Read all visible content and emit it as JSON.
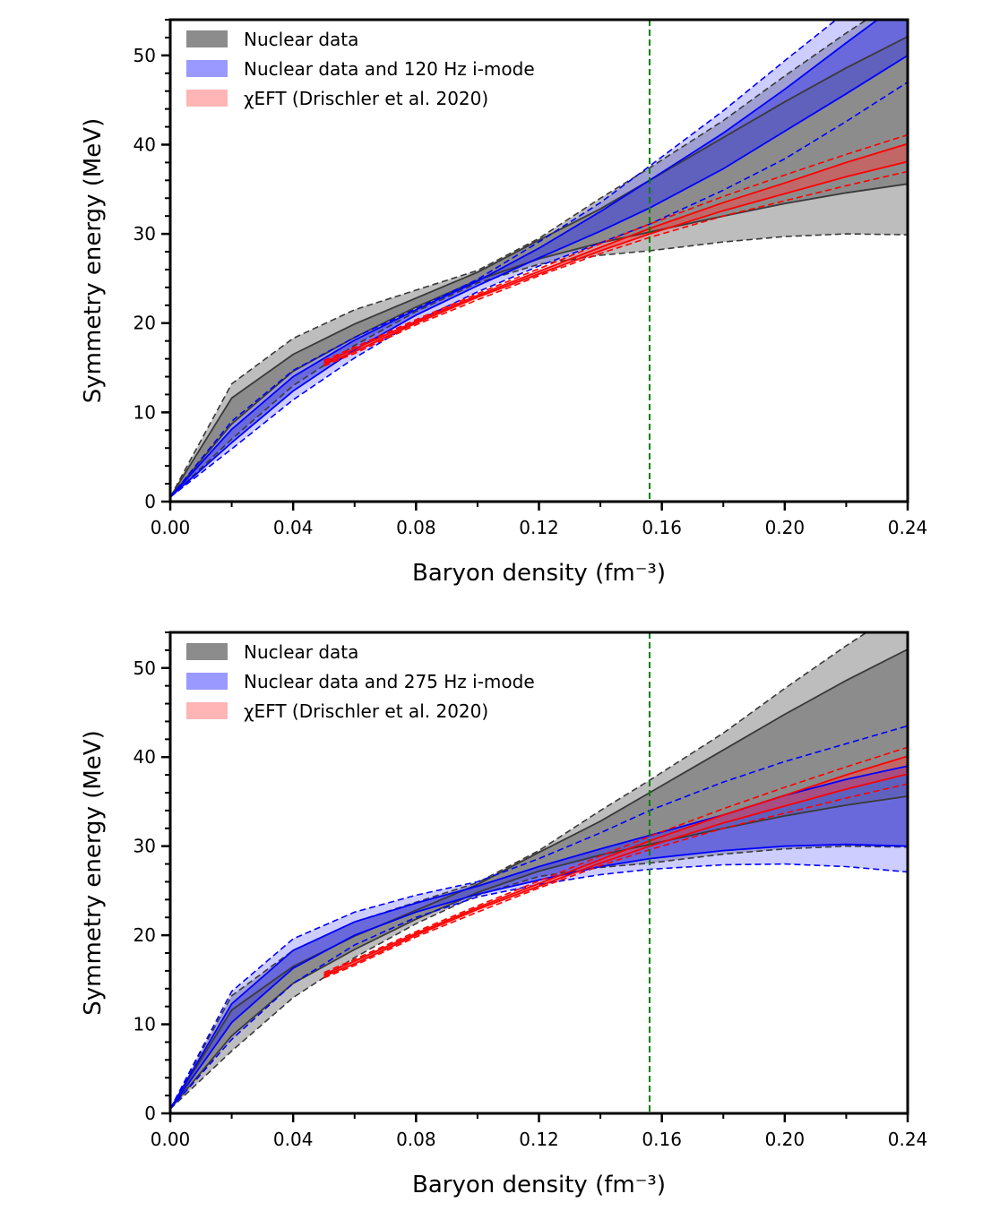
{
  "chart_data": [
    {
      "type": "line",
      "xlabel": "Baryon density (fm⁻³)",
      "ylabel": "Symmetry energy (MeV)",
      "xlim": [
        0,
        0.24
      ],
      "ylim": [
        0,
        54
      ],
      "xticks": [
        "0.00",
        "0.04",
        "0.08",
        "0.12",
        "0.16",
        "0.20",
        "0.24"
      ],
      "yticks": [
        "0",
        "10",
        "20",
        "30",
        "40",
        "50"
      ],
      "vline_x": 0.156,
      "legend_position": "upper-left",
      "legend": [
        "Nuclear data",
        "Nuclear data and 120 Hz i-mode",
        "χEFT (Drischler et al. 2020)"
      ],
      "series": [
        {
          "name": "Nuclear data",
          "color": "#404040",
          "x": [
            0.0,
            0.02,
            0.04,
            0.06,
            0.08,
            0.1,
            0.12,
            0.14,
            0.156,
            0.18,
            0.2,
            0.22,
            0.24
          ],
          "outer_low": [
            0.5,
            7.0,
            13.0,
            17.5,
            21.3,
            24.5,
            26.6,
            27.6,
            28.1,
            29.1,
            29.7,
            30.0,
            29.9
          ],
          "inner_low": [
            0.5,
            8.7,
            14.6,
            18.4,
            21.8,
            24.8,
            27.2,
            29.0,
            30.2,
            32.0,
            33.4,
            34.6,
            35.6
          ],
          "inner_high": [
            0.5,
            11.6,
            16.5,
            19.9,
            22.8,
            25.7,
            29.3,
            32.8,
            36.0,
            40.8,
            44.8,
            48.6,
            52.1
          ],
          "outer_high": [
            0.5,
            13.2,
            18.3,
            21.5,
            23.7,
            25.9,
            29.5,
            34.0,
            37.4,
            42.7,
            47.7,
            52.5,
            57.0
          ]
        },
        {
          "name": "Nuclear data and 120 Hz i-mode",
          "color": "#0000ff",
          "x": [
            0.0,
            0.02,
            0.04,
            0.06,
            0.08,
            0.1,
            0.12,
            0.14,
            0.156,
            0.18,
            0.2,
            0.22,
            0.24
          ],
          "outer_low": [
            0.5,
            5.9,
            11.4,
            16.1,
            20.2,
            23.5,
            26.4,
            29.0,
            31.1,
            34.9,
            38.4,
            42.6,
            47.0
          ],
          "inner_low": [
            0.5,
            6.6,
            12.4,
            17.0,
            20.9,
            24.2,
            27.3,
            30.3,
            32.9,
            37.3,
            41.5,
            45.7,
            50.0
          ],
          "inner_high": [
            0.5,
            8.1,
            14.0,
            18.1,
            21.5,
            24.7,
            28.4,
            32.5,
            36.0,
            41.3,
            46.2,
            51.4,
            56.5
          ],
          "outer_high": [
            0.5,
            9.0,
            14.7,
            18.4,
            21.6,
            24.9,
            29.1,
            33.5,
            37.6,
            43.8,
            49.4,
            54.9,
            60.0
          ]
        },
        {
          "name": "χEFT (Drischler et al. 2020)",
          "color": "#ff0000",
          "x": [
            0.05,
            0.06,
            0.08,
            0.1,
            0.12,
            0.14,
            0.156,
            0.18,
            0.2,
            0.22,
            0.24
          ],
          "outer_low": [
            15.2,
            16.6,
            19.8,
            22.6,
            25.3,
            27.8,
            29.6,
            32.0,
            33.7,
            35.4,
            37.0
          ],
          "inner_low": [
            15.4,
            16.8,
            20.0,
            22.9,
            25.5,
            28.1,
            30.0,
            32.6,
            34.5,
            36.4,
            38.1
          ],
          "inner_high": [
            15.6,
            17.1,
            20.2,
            23.1,
            25.8,
            28.5,
            30.6,
            33.5,
            35.7,
            38.0,
            40.1
          ],
          "outer_high": [
            15.8,
            17.3,
            20.4,
            23.3,
            26.1,
            28.9,
            31.1,
            34.2,
            36.6,
            38.9,
            41.1
          ]
        }
      ]
    },
    {
      "type": "line",
      "xlabel": "Baryon density (fm⁻³)",
      "ylabel": "Symmetry energy (MeV)",
      "xlim": [
        0,
        0.24
      ],
      "ylim": [
        0,
        54
      ],
      "xticks": [
        "0.00",
        "0.04",
        "0.08",
        "0.12",
        "0.16",
        "0.20",
        "0.24"
      ],
      "yticks": [
        "0",
        "10",
        "20",
        "30",
        "40",
        "50"
      ],
      "vline_x": 0.156,
      "legend_position": "upper-left",
      "legend": [
        "Nuclear data",
        "Nuclear data and 275 Hz i-mode",
        "χEFT (Drischler et al. 2020)"
      ],
      "series": [
        {
          "name": "Nuclear data",
          "color": "#404040",
          "x": [
            0.0,
            0.02,
            0.04,
            0.06,
            0.08,
            0.1,
            0.12,
            0.14,
            0.156,
            0.18,
            0.2,
            0.22,
            0.24
          ],
          "outer_low": [
            0.5,
            7.0,
            13.0,
            17.5,
            21.3,
            24.5,
            26.6,
            27.6,
            28.1,
            29.1,
            29.7,
            30.0,
            29.9
          ],
          "inner_low": [
            0.5,
            8.7,
            14.6,
            18.4,
            21.8,
            24.8,
            27.2,
            29.0,
            30.2,
            32.0,
            33.4,
            34.6,
            35.6
          ],
          "inner_high": [
            0.5,
            11.6,
            16.5,
            19.9,
            22.8,
            25.7,
            29.3,
            32.8,
            36.0,
            40.8,
            44.8,
            48.6,
            52.1
          ],
          "outer_high": [
            0.5,
            13.2,
            18.3,
            21.5,
            23.7,
            25.9,
            29.5,
            34.0,
            37.4,
            42.7,
            47.7,
            52.5,
            57.0
          ]
        },
        {
          "name": "Nuclear data and 275 Hz i-mode",
          "color": "#0000ff",
          "x": [
            0.0,
            0.02,
            0.04,
            0.06,
            0.08,
            0.1,
            0.12,
            0.14,
            0.156,
            0.18,
            0.2,
            0.22,
            0.24
          ],
          "outer_low": [
            0.5,
            8.3,
            14.6,
            18.9,
            22.0,
            24.3,
            25.7,
            26.8,
            27.4,
            27.9,
            28.0,
            27.7,
            27.1
          ],
          "inner_low": [
            0.5,
            10.2,
            16.3,
            20.0,
            22.6,
            24.6,
            26.2,
            27.7,
            28.6,
            29.5,
            30.0,
            30.2,
            30.0
          ],
          "inner_high": [
            0.5,
            12.3,
            18.3,
            21.5,
            23.6,
            25.5,
            27.7,
            29.7,
            31.2,
            33.5,
            35.7,
            37.5,
            39.0
          ],
          "outer_high": [
            0.5,
            13.7,
            19.6,
            22.6,
            24.5,
            26.0,
            28.6,
            31.5,
            34.0,
            37.2,
            39.5,
            41.5,
            43.5
          ]
        },
        {
          "name": "χEFT (Drischler et al. 2020)",
          "color": "#ff0000",
          "x": [
            0.05,
            0.06,
            0.08,
            0.1,
            0.12,
            0.14,
            0.156,
            0.18,
            0.2,
            0.22,
            0.24
          ],
          "outer_low": [
            15.2,
            16.6,
            19.8,
            22.6,
            25.3,
            27.8,
            29.6,
            32.0,
            33.7,
            35.4,
            37.0
          ],
          "inner_low": [
            15.4,
            16.8,
            20.0,
            22.9,
            25.5,
            28.1,
            30.0,
            32.6,
            34.5,
            36.4,
            38.1
          ],
          "inner_high": [
            15.6,
            17.1,
            20.2,
            23.1,
            25.8,
            28.5,
            30.6,
            33.5,
            35.7,
            38.0,
            40.1
          ],
          "outer_high": [
            15.8,
            17.3,
            20.4,
            23.3,
            26.1,
            28.9,
            31.1,
            34.2,
            36.6,
            38.9,
            41.1
          ]
        }
      ]
    }
  ]
}
